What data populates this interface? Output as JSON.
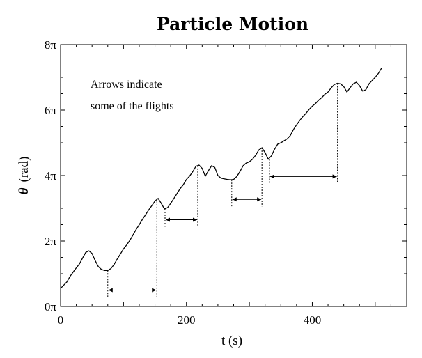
{
  "chart_data": {
    "type": "line",
    "title": "Particle Motion",
    "xlabel": "t (s)",
    "ylabel_symbol": "θ",
    "ylabel_unit": "(rad)",
    "xlim": [
      0,
      550
    ],
    "ylim": [
      0,
      8
    ],
    "y_unit": "π",
    "xticks": [
      0,
      200,
      400
    ],
    "xtick_labels": [
      "0",
      "200",
      "400"
    ],
    "yticks": [
      0,
      2,
      4,
      6,
      8
    ],
    "ytick_labels": [
      "0π",
      "2π",
      "4π",
      "6π",
      "8π"
    ],
    "grid": false,
    "annotation_lines": [
      "Arrows indicate",
      "some of the flights"
    ],
    "series": [
      {
        "x": [
          0,
          5,
          10,
          15,
          20,
          25,
          30,
          35,
          40,
          45,
          50,
          55,
          60,
          65,
          70,
          75,
          80,
          85,
          90,
          95,
          100,
          105,
          110,
          115,
          120,
          125,
          130,
          135,
          140,
          145,
          150,
          155,
          160,
          165,
          170,
          175,
          180,
          185,
          190,
          195,
          200,
          205,
          210,
          215,
          220,
          225,
          230,
          235,
          240,
          245,
          250,
          255,
          260,
          265,
          270,
          275,
          280,
          285,
          290,
          295,
          300,
          305,
          310,
          315,
          320,
          325,
          330,
          335,
          340,
          345,
          350,
          355,
          360,
          365,
          370,
          375,
          380,
          385,
          390,
          395,
          400,
          405,
          410,
          415,
          420,
          425,
          430,
          435,
          440,
          445,
          450,
          455,
          460,
          465,
          470,
          475,
          480,
          485,
          490,
          495,
          500,
          505,
          510
        ],
        "y": [
          0.55,
          0.65,
          0.75,
          0.92,
          1.05,
          1.18,
          1.3,
          1.48,
          1.65,
          1.7,
          1.62,
          1.4,
          1.22,
          1.13,
          1.1,
          1.1,
          1.16,
          1.28,
          1.45,
          1.6,
          1.76,
          1.88,
          2.02,
          2.18,
          2.35,
          2.5,
          2.66,
          2.8,
          2.95,
          3.08,
          3.22,
          3.3,
          3.15,
          2.98,
          3.02,
          3.15,
          3.3,
          3.45,
          3.6,
          3.72,
          3.88,
          3.98,
          4.12,
          4.28,
          4.32,
          4.22,
          3.98,
          4.15,
          4.3,
          4.25,
          4.0,
          3.92,
          3.9,
          3.88,
          3.87,
          3.88,
          3.97,
          4.12,
          4.3,
          4.38,
          4.42,
          4.5,
          4.62,
          4.78,
          4.85,
          4.7,
          4.5,
          4.6,
          4.8,
          4.96,
          5.0,
          5.06,
          5.12,
          5.22,
          5.4,
          5.55,
          5.68,
          5.8,
          5.9,
          6.02,
          6.12,
          6.2,
          6.3,
          6.38,
          6.48,
          6.55,
          6.68,
          6.78,
          6.82,
          6.8,
          6.72,
          6.55,
          6.68,
          6.8,
          6.85,
          6.75,
          6.58,
          6.62,
          6.8,
          6.9,
          7.0,
          7.12,
          7.28
        ]
      }
    ],
    "flights": [
      {
        "x_start": 75,
        "x_end": 153,
        "y_start": 1.1,
        "y_end": 3.3,
        "y_arrow": 0.5
      },
      {
        "x_start": 166,
        "x_end": 218,
        "y_start": 2.98,
        "y_end": 4.3,
        "y_arrow": 2.65
      },
      {
        "x_start": 272,
        "x_end": 320,
        "y_start": 3.87,
        "y_end": 4.85,
        "y_arrow": 3.27
      },
      {
        "x_start": 332,
        "x_end": 440,
        "y_start": 4.5,
        "y_end": 6.82,
        "y_arrow": 3.97
      }
    ]
  }
}
